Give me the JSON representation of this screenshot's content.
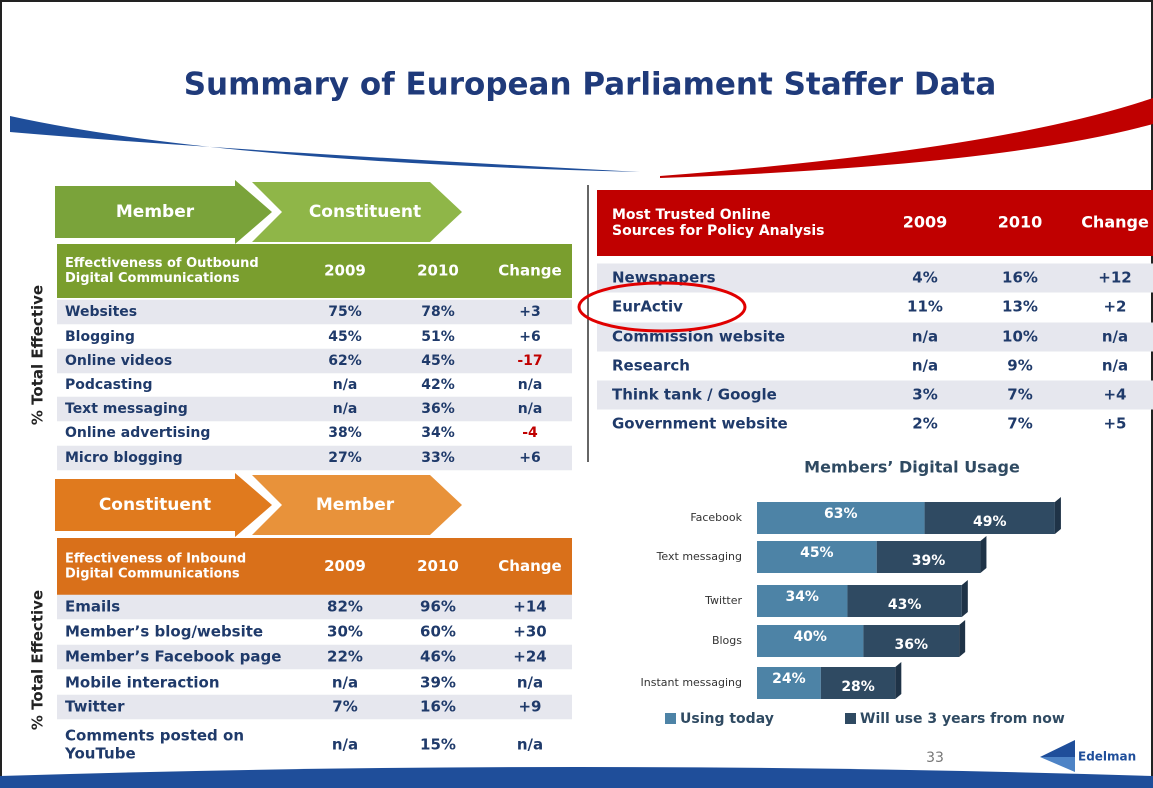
{
  "title": "Summary of European Parliament Staffer Data",
  "outbound": {
    "arrow_from": "Member",
    "arrow_to": "Constituent",
    "axis_label": "% Total Effective",
    "header": [
      [
        "Effectiveness of Outbound",
        "Digital Communications"
      ],
      "2009",
      "2010",
      "Change"
    ],
    "rows": [
      [
        [
          "Websites"
        ],
        "75%",
        "78%",
        "+3"
      ],
      [
        [
          "Blogging"
        ],
        "45%",
        "51%",
        "+6"
      ],
      [
        [
          "Online videos"
        ],
        "62%",
        "45%",
        "-17"
      ],
      [
        [
          "Podcasting"
        ],
        "n/a",
        "42%",
        "n/a"
      ],
      [
        [
          "Text messaging"
        ],
        "n/a",
        "36%",
        "n/a"
      ],
      [
        [
          "Online advertising"
        ],
        "38%",
        "34%",
        "-4"
      ],
      [
        [
          "Micro blogging"
        ],
        "27%",
        "33%",
        "+6"
      ]
    ]
  },
  "inbound": {
    "arrow_from": "Constituent",
    "arrow_to": "Member",
    "axis_label": "% Total Effective",
    "header": [
      [
        "Effectiveness of Inbound",
        "Digital Communications"
      ],
      "2009",
      "2010",
      "Change"
    ],
    "rows": [
      [
        [
          "Emails"
        ],
        "82%",
        "96%",
        "+14"
      ],
      [
        [
          "Member’s blog/website"
        ],
        "30%",
        "60%",
        "+30"
      ],
      [
        [
          "Member’s Facebook page"
        ],
        "22%",
        "46%",
        "+24"
      ],
      [
        [
          "Mobile interaction"
        ],
        "n/a",
        "39%",
        "n/a"
      ],
      [
        [
          "Twitter"
        ],
        "7%",
        "16%",
        "+9"
      ],
      [
        [
          "Comments posted on",
          "YouTube"
        ],
        "n/a",
        "15%",
        "n/a"
      ]
    ]
  },
  "trusted": {
    "header": [
      [
        "Most Trusted Online",
        "Sources for Policy Analysis"
      ],
      "2009",
      "2010",
      "Change"
    ],
    "rows": [
      [
        [
          "Newspapers"
        ],
        "4%",
        "16%",
        "+12"
      ],
      [
        [
          "EurActiv"
        ],
        "11%",
        "13%",
        "+2"
      ],
      [
        [
          "Commission website"
        ],
        "n/a",
        "10%",
        "n/a"
      ],
      [
        [
          "Research"
        ],
        "n/a",
        "9%",
        "n/a"
      ],
      [
        [
          "Think tank / Google"
        ],
        "3%",
        "7%",
        "+4"
      ],
      [
        [
          "Government website"
        ],
        "2%",
        "7%",
        "+5"
      ]
    ]
  },
  "chart_data": {
    "type": "stacked-barh",
    "title": "Members’ Digital Usage",
    "categories": [
      "Facebook",
      "Text messaging",
      "Twitter",
      "Blogs",
      "Instant messaging"
    ],
    "series": [
      {
        "name": "Using today",
        "color": "#4d83a6",
        "values": [
          63,
          45,
          34,
          40,
          24
        ],
        "value_labels": [
          "63%",
          "45%",
          "34%",
          "40%",
          "24%"
        ]
      },
      {
        "name": "Will use 3 years from now",
        "color": "#2f4a62",
        "values": [
          49,
          39,
          43,
          36,
          28
        ],
        "value_labels": [
          "49%",
          "39%",
          "43%",
          "36%",
          "28%"
        ]
      }
    ]
  },
  "page_number": "33",
  "logo": "Edelman"
}
